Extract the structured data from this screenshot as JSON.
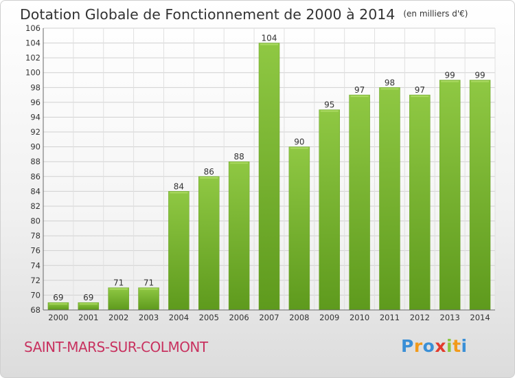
{
  "chart_data": {
    "type": "bar",
    "title": "Dotation Globale de Fonctionnement de 2000 à 2014",
    "subtitle": "(en milliers d'€)",
    "categories": [
      "2000",
      "2001",
      "2002",
      "2003",
      "2004",
      "2005",
      "2006",
      "2007",
      "2008",
      "2009",
      "2010",
      "2011",
      "2012",
      "2013",
      "2014"
    ],
    "values": [
      69,
      69,
      71,
      71,
      84,
      86,
      88,
      104,
      90,
      95,
      97,
      98,
      97,
      99,
      99
    ],
    "ylim": [
      68,
      106
    ],
    "yticks": [
      68,
      70,
      72,
      74,
      76,
      78,
      80,
      82,
      84,
      86,
      88,
      90,
      92,
      94,
      96,
      98,
      100,
      102,
      104,
      106
    ],
    "grid": true,
    "bar_color": "#7cb532"
  },
  "commune": "SAINT-MARS-SUR-COLMONT",
  "logo": {
    "letters": [
      "P",
      "r",
      "o",
      "x",
      "i",
      "t",
      "i"
    ],
    "colors": [
      "#3a8fd6",
      "#f29a1a",
      "#3a8fd6",
      "#e23a2c",
      "#8cc63f",
      "#f29a1a",
      "#3a8fd6"
    ]
  }
}
